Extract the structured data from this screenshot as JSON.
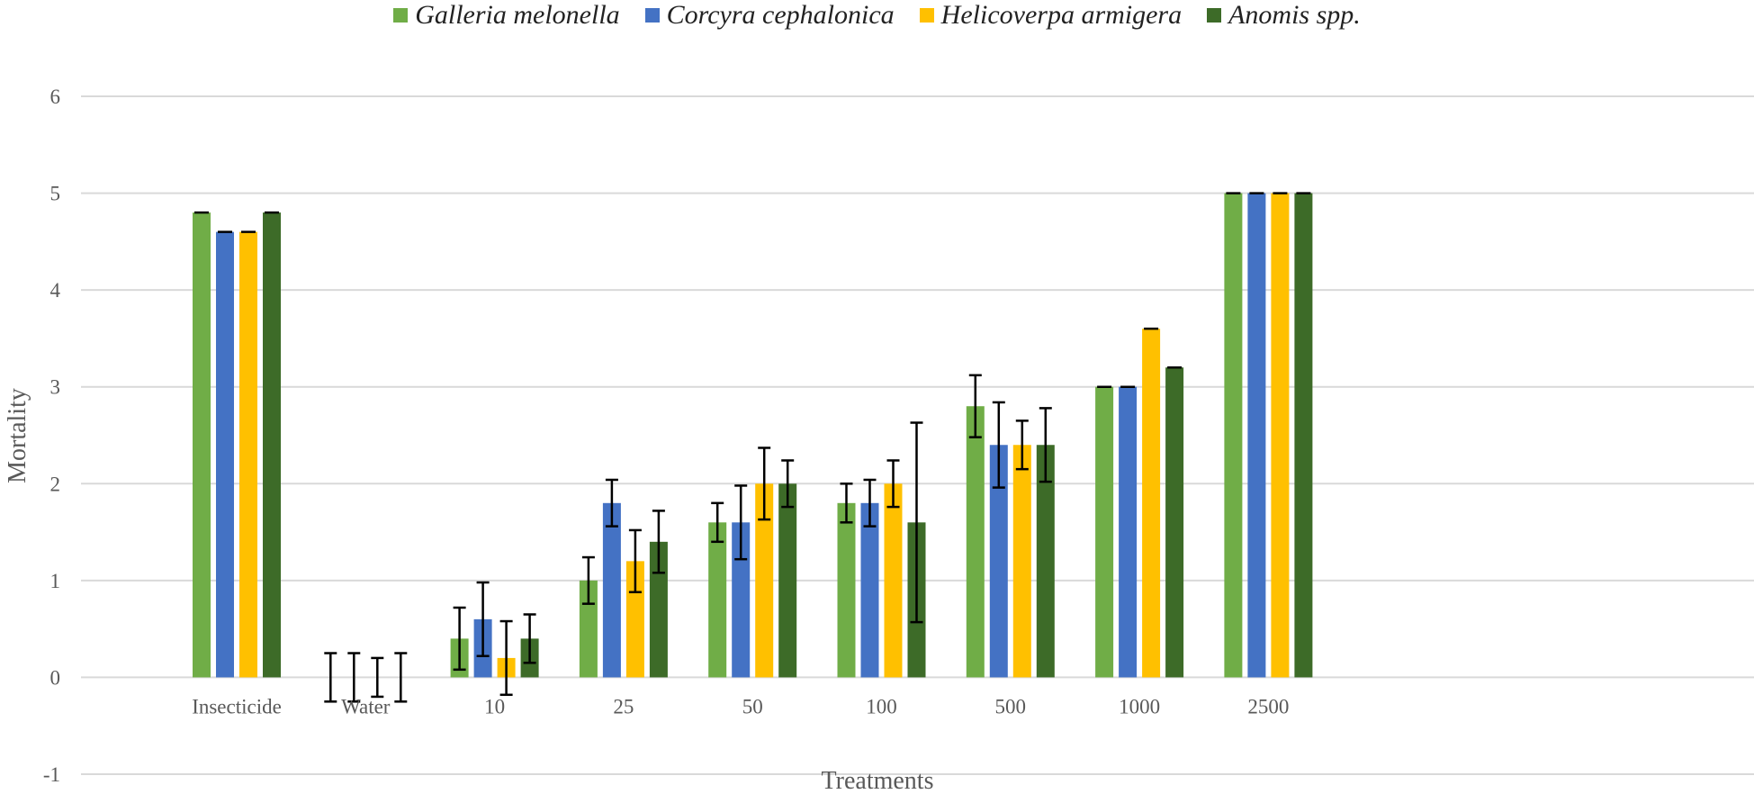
{
  "chart_data": {
    "type": "bar",
    "title": "",
    "xlabel": "Treatments",
    "ylabel": "Mortality",
    "ylim": [
      -1,
      6
    ],
    "yticks": [
      -1,
      0,
      1,
      2,
      3,
      4,
      5,
      6
    ],
    "grid": true,
    "legend_position": "top-center",
    "categories": [
      "Insecticide",
      "Water",
      "10",
      "25",
      "50",
      "100",
      "500",
      "1000",
      "2500"
    ],
    "series": [
      {
        "name": "Galleria melonella",
        "color": "#70ad47",
        "values": [
          4.8,
          0,
          0.4,
          1.0,
          1.6,
          1.8,
          2.8,
          3.0,
          5.0
        ],
        "errors": [
          0,
          0.25,
          0.32,
          0.24,
          0.2,
          0.2,
          0.32,
          0,
          0
        ]
      },
      {
        "name": "Corcyra cephalonica",
        "color": "#4472c4",
        "values": [
          4.6,
          0,
          0.6,
          1.8,
          1.6,
          1.8,
          2.4,
          3.0,
          5.0
        ],
        "errors": [
          0,
          0.25,
          0.38,
          0.24,
          0.38,
          0.24,
          0.44,
          0,
          0
        ]
      },
      {
        "name": "Helicoverpa armigera",
        "color": "#ffc000",
        "values": [
          4.6,
          0,
          0.2,
          1.2,
          2.0,
          2.0,
          2.4,
          3.6,
          5.0
        ],
        "errors": [
          0,
          0.2,
          0.38,
          0.32,
          0.37,
          0.24,
          0.25,
          0,
          0
        ]
      },
      {
        "name": "Anomis spp.",
        "color": "#3d6b28",
        "values": [
          4.8,
          0,
          0.4,
          1.4,
          2.0,
          1.6,
          2.4,
          3.2,
          5.0
        ],
        "errors": [
          0,
          0.25,
          0.25,
          0.32,
          0.24,
          1.03,
          0.38,
          0,
          0
        ]
      }
    ]
  }
}
